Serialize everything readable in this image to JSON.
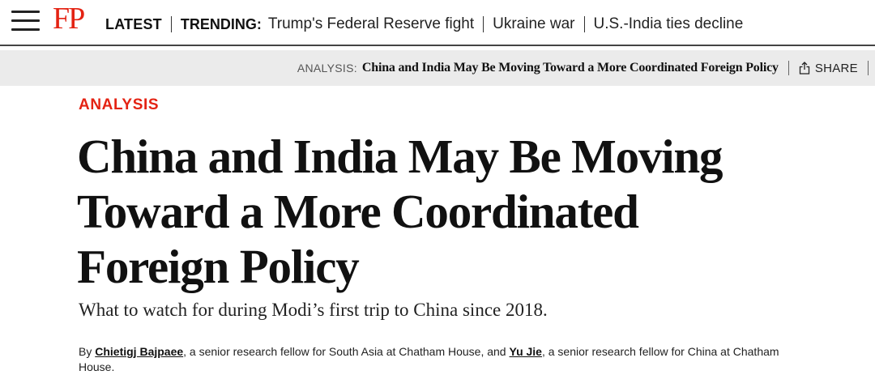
{
  "nav": {
    "logo": "FP",
    "latest": "LATEST",
    "trending_label": "TRENDING:",
    "trending": [
      "Trump's Federal Reserve fight",
      "Ukraine war",
      "U.S.-India ties decline"
    ]
  },
  "subbar": {
    "kicker": "ANALYSIS:",
    "title": "China and India May Be Moving Toward a More Coordinated Foreign Policy",
    "share": "SHARE"
  },
  "article": {
    "kicker": "ANALYSIS",
    "headline_lines": [
      "China and India May Be Moving",
      "Toward a More Coordinated",
      "Foreign Policy"
    ],
    "dek": "What to watch for during Modi’s first trip to China since 2018.",
    "byline": {
      "by": "By ",
      "author1": "Chietigj Bajpaee",
      "author1_desc": ", a senior research fellow for South Asia at Chatham House, and ",
      "author2": "Yu Jie",
      "author2_desc": ", a senior research fellow for China at Chatham House."
    }
  },
  "colors": {
    "brand_red": "#e42313",
    "subbar_bg": "#ebebeb"
  },
  "icons": [
    "hamburger-menu-icon",
    "share-icon"
  ]
}
